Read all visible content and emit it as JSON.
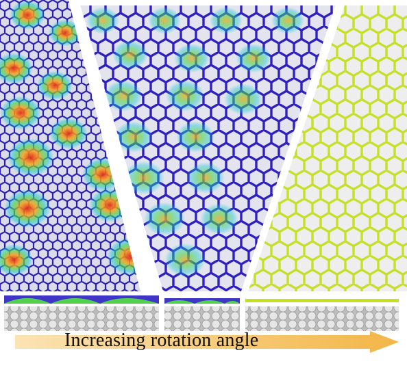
{
  "figure": {
    "caption": "Increasing rotation angle",
    "colors": {
      "background": "#ffffff",
      "lattice_low": "#2a1fb0",
      "lattice_mid": "#12c7d6",
      "lattice_green": "#4fd34a",
      "lattice_high": "#e12a1a",
      "lattice_yellow": "#c6e02a",
      "substrate": "#d9d9d9",
      "arrow": "#f6c25b"
    },
    "panels": [
      {
        "name": "small-angle-moire-panel"
      },
      {
        "name": "medium-angle-moire-panel"
      },
      {
        "name": "large-angle-flat-panel"
      }
    ]
  }
}
